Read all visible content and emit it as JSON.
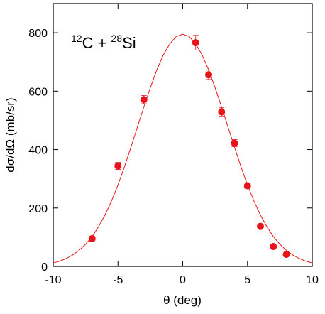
{
  "chart_data": {
    "type": "scatter",
    "annotation": [
      "12",
      "C + ",
      "28",
      "Si"
    ],
    "xlabel": "θ (deg)",
    "ylabel": "dσ/dΩ (mb/sr)",
    "xlim": [
      -10,
      10
    ],
    "xticks": [
      -10,
      -5,
      0,
      5,
      10
    ],
    "ylim": [
      0,
      900
    ],
    "yticks": [
      0,
      200,
      400,
      600,
      800
    ],
    "series": [
      {
        "type": "line",
        "color": "#e8141a",
        "x": [
          -10,
          -9.5,
          -9,
          -8.5,
          -8,
          -7.5,
          -7,
          -6.5,
          -6,
          -5.5,
          -5,
          -4.5,
          -4,
          -3.5,
          -3,
          -2.5,
          -2,
          -1.5,
          -1,
          -0.5,
          0,
          0.5,
          1,
          1.5,
          2,
          2.5,
          3,
          3.5,
          4,
          4.5,
          5,
          5.5,
          6,
          6.5,
          7,
          7.5,
          8,
          8.5,
          9,
          9.5,
          10
        ],
        "values": [
          12,
          18,
          27,
          39,
          55,
          76,
          102,
          136,
          176,
          224,
          279,
          341,
          408,
          477,
          546,
          612,
          673,
          724,
          762,
          787,
          795,
          787,
          762,
          724,
          673,
          612,
          546,
          477,
          408,
          341,
          279,
          224,
          176,
          136,
          102,
          76,
          55,
          39,
          27,
          18,
          12
        ]
      },
      {
        "type": "scatter",
        "color": "#e8141a",
        "x": [
          -7,
          -5,
          -3,
          1,
          2,
          3,
          4,
          5,
          6,
          7,
          8
        ],
        "values": [
          95,
          344,
          571,
          766,
          656,
          529,
          422,
          276,
          137,
          68,
          41
        ],
        "errors": [
          8,
          12,
          14,
          25,
          16,
          14,
          12,
          9,
          7,
          5,
          4
        ]
      }
    ]
  }
}
